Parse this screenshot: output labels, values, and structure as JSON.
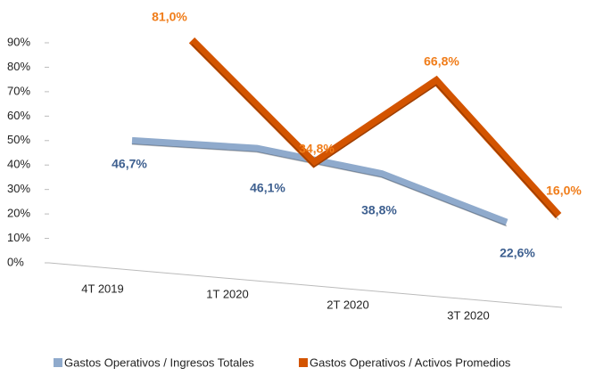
{
  "chart_data": {
    "type": "line",
    "categories": [
      "4T 2019",
      "1T 2020",
      "2T 2020",
      "3T 2020"
    ],
    "series": [
      {
        "name": "Gastos Operativos / Ingresos Totales",
        "color": "#8faacc",
        "values": [
          46.7,
          46.1,
          38.8,
          22.6
        ],
        "value_labels": [
          "46,7%",
          "46,1%",
          "38,8%",
          "22,6%"
        ],
        "label_color": "#3d5f8f"
      },
      {
        "name": "Gastos Operativos / Activos Promedios",
        "color": "#d35400",
        "values": [
          81.0,
          34.8,
          66.8,
          16.0
        ],
        "value_labels": [
          "81,0%",
          "34,8%",
          "66,8%",
          "16,0%"
        ],
        "label_color": "#f07d1a"
      }
    ],
    "ylim": [
      0,
      90
    ],
    "yticks": [
      {
        "value": 0,
        "label": "0%"
      },
      {
        "value": 10,
        "label": "10%"
      },
      {
        "value": 20,
        "label": "20%"
      },
      {
        "value": 30,
        "label": "30%"
      },
      {
        "value": 40,
        "label": "40%"
      },
      {
        "value": 50,
        "label": "50%"
      },
      {
        "value": 60,
        "label": "60%"
      },
      {
        "value": 70,
        "label": "70%"
      },
      {
        "value": 80,
        "label": "80%"
      },
      {
        "value": 90,
        "label": "90%"
      }
    ],
    "legend": "bottom"
  }
}
